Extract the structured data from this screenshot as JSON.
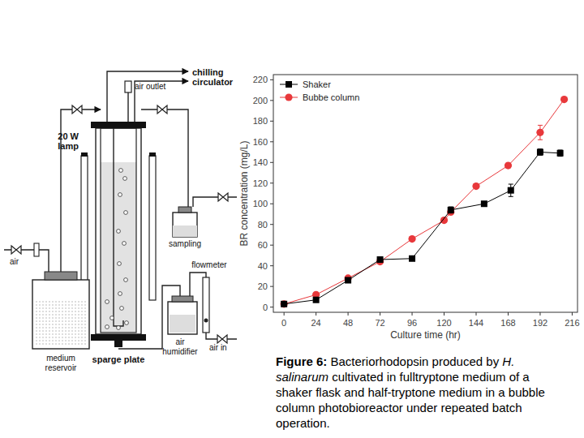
{
  "chart_data": {
    "type": "line",
    "x_label": "Culture time (hr)",
    "y_label": "BR concentration (mg/L)",
    "xlim": [
      -8,
      220
    ],
    "xticks": [
      0,
      24,
      48,
      72,
      96,
      120,
      144,
      168,
      192,
      216
    ],
    "ylim": [
      -5,
      225
    ],
    "yticks": [
      0,
      20,
      40,
      60,
      80,
      100,
      120,
      140,
      160,
      180,
      200,
      220
    ],
    "legend": "top-left",
    "grid": false,
    "series": [
      {
        "name": "Shaker",
        "color": "#000000",
        "marker": "square",
        "line_style": "solid",
        "x": [
          0,
          24,
          48,
          72,
          96,
          125,
          150,
          170,
          192,
          207
        ],
        "values": [
          3,
          7,
          26,
          46,
          47,
          94,
          100,
          113,
          150,
          149
        ],
        "errors": [
          null,
          null,
          null,
          null,
          null,
          3,
          null,
          6,
          3,
          3
        ]
      },
      {
        "name": "Bubbe column",
        "color": "#e8383b",
        "marker": "circle",
        "line_style": "solid",
        "x": [
          0,
          24,
          48,
          72,
          96,
          120,
          125,
          144,
          168,
          192,
          210
        ],
        "values": [
          3,
          12,
          28,
          44,
          66,
          84,
          92,
          117,
          137,
          169,
          201
        ],
        "errors": [
          null,
          null,
          null,
          null,
          null,
          null,
          null,
          null,
          null,
          7,
          null
        ]
      }
    ]
  },
  "diagram": {
    "chilling_circulator": [
      "chilling",
      "circulator"
    ],
    "air_outlet": "air outlet",
    "lamp": [
      "20 W",
      "lamp"
    ],
    "sampling": "sampling",
    "air": "air",
    "medium_reservoir": [
      "medium",
      "reservoir"
    ],
    "flowmeter": "flowmeter",
    "air_humidifier": [
      "air",
      "humidifier"
    ],
    "air_in": "air in",
    "sparge_plate": "sparge plate"
  },
  "caption": {
    "label": "Figure 6:",
    "parts": [
      "Bacteriorhodopsin produced by ",
      "H. salinarum",
      " cultivated in fulltryptone medium of a shaker flask and half-tryptone medium in a bubble column photobioreactor under repeated batch operation."
    ]
  }
}
